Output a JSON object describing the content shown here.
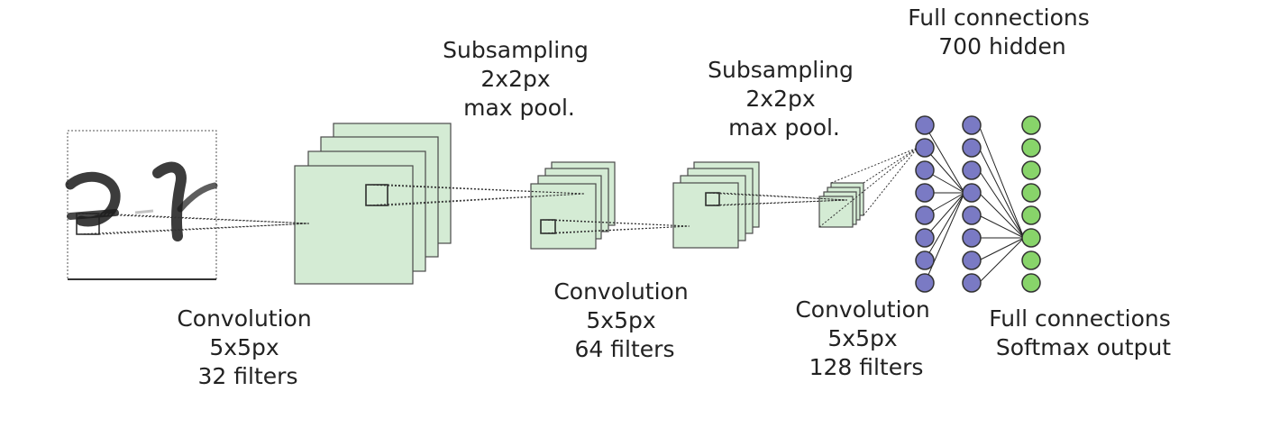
{
  "labels": {
    "conv1": [
      "Convolution",
      "5x5px",
      "32 filters"
    ],
    "pool1": [
      "Subsampling",
      "2x2px",
      "max pool."
    ],
    "conv2": [
      "Convolution",
      "5x5px",
      "64 filters"
    ],
    "pool2": [
      "Subsampling",
      "2x2px",
      "max pool."
    ],
    "conv3": [
      "Convolution",
      "5x5px",
      "128 filters"
    ],
    "fc_hidden": [
      "Full connections",
      "700 hidden"
    ],
    "fc_output": [
      "Full connections",
      "Softmax output"
    ]
  },
  "colors": {
    "feature_map_fill": "#d4ebd4",
    "feature_map_stroke": "#4a4a4a",
    "hidden_node_fill": "#7a7ac4",
    "output_node_fill": "#88d46a",
    "node_stroke": "#333333"
  }
}
